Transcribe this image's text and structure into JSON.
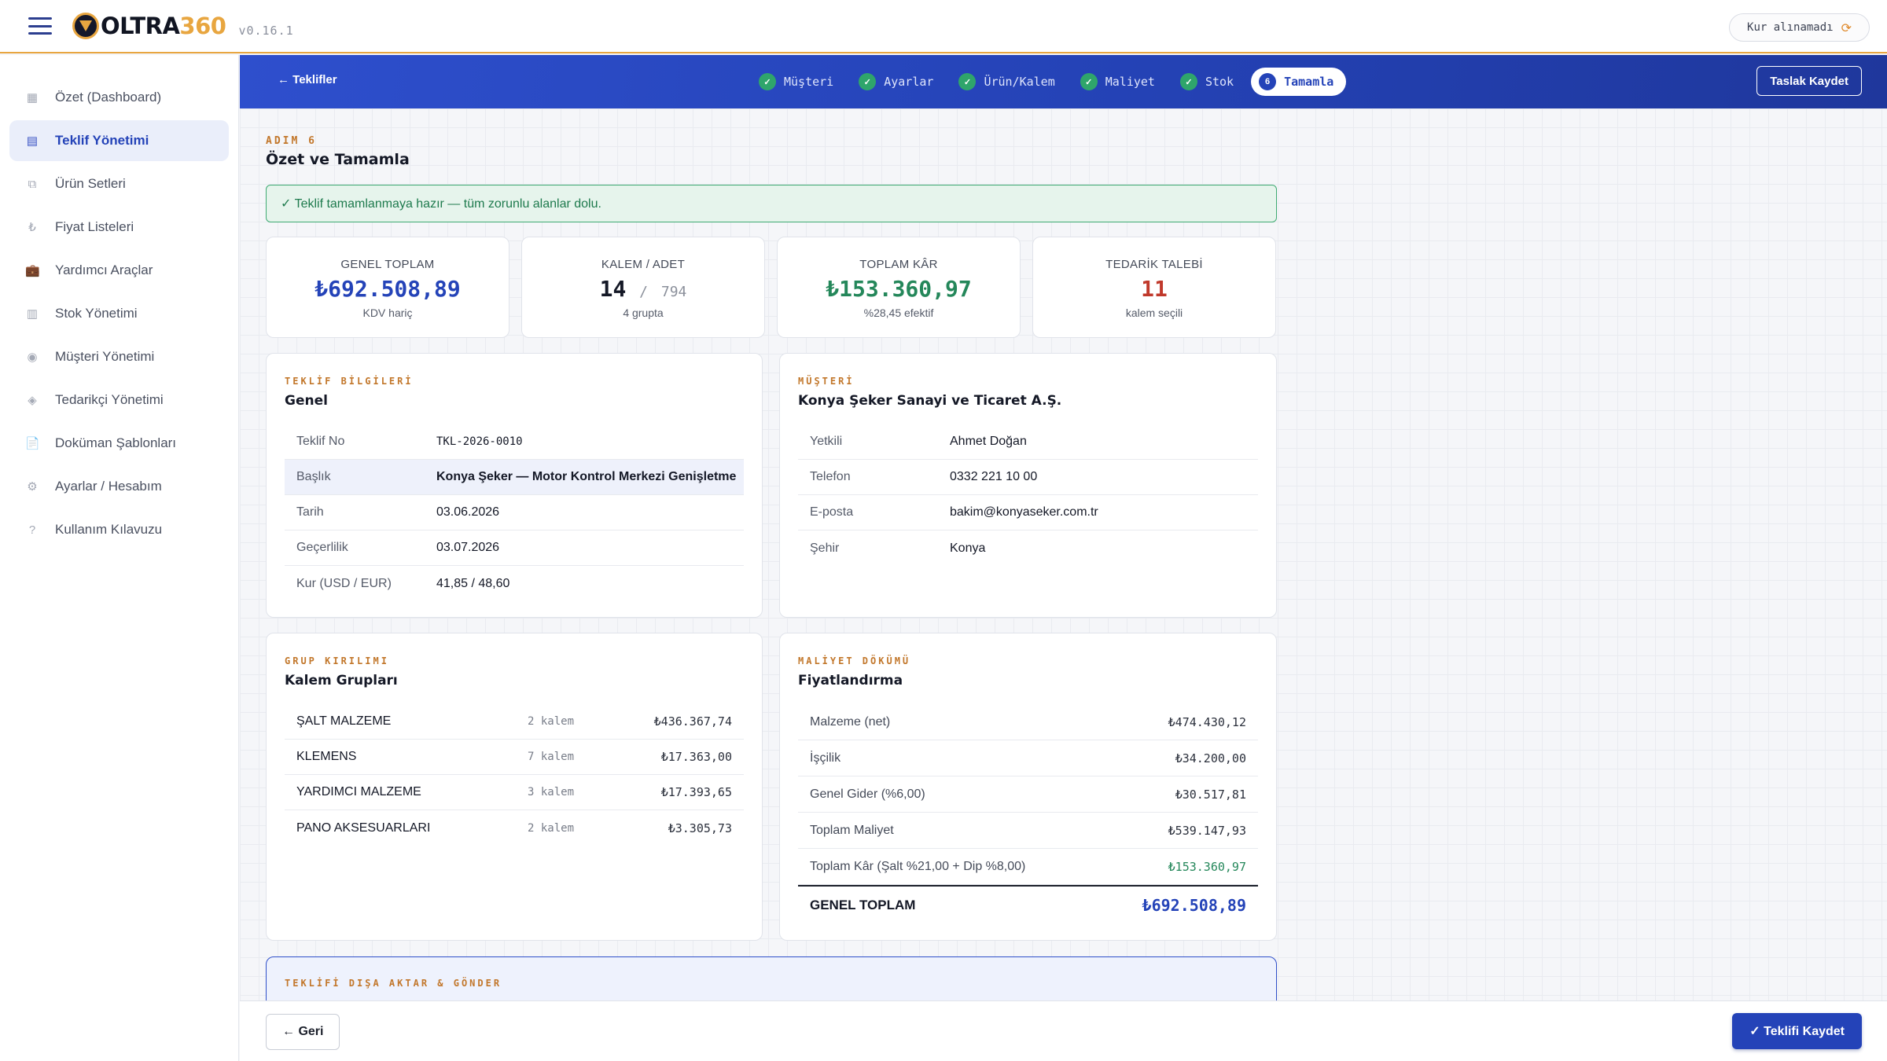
{
  "app": {
    "logo_text": "OLTRA",
    "logo_number": "360",
    "version": "v0.16.1",
    "kur_status": "Kur alınamadı",
    "colors": {
      "brand": "#2443b8",
      "accent": "#e8a640",
      "success": "#24875a",
      "danger": "#c0392b"
    }
  },
  "sidebar": {
    "items": [
      {
        "label": "Özet (Dashboard)",
        "icon": "dashboard-icon",
        "glyph": "▦"
      },
      {
        "label": "Teklif Yönetimi",
        "icon": "document-icon",
        "glyph": "▤"
      },
      {
        "label": "Ürün Setleri",
        "icon": "box-icon",
        "glyph": "⧉"
      },
      {
        "label": "Fiyat Listeleri",
        "icon": "lira-icon",
        "glyph": "₺"
      },
      {
        "label": "Yardımcı Araçlar",
        "icon": "toolbox-icon",
        "glyph": "💼"
      },
      {
        "label": "Stok Yönetimi",
        "icon": "warehouse-icon",
        "glyph": "▥"
      },
      {
        "label": "Müşteri Yönetimi",
        "icon": "customer-icon",
        "glyph": "◉"
      },
      {
        "label": "Tedarikçi Yönetimi",
        "icon": "supplier-icon",
        "glyph": "◈"
      },
      {
        "label": "Doküman Şablonları",
        "icon": "file-icon",
        "glyph": "📄"
      },
      {
        "label": "Ayarlar / Hesabım",
        "icon": "gear-icon",
        "glyph": "⚙"
      },
      {
        "label": "Kullanım Kılavuzu",
        "icon": "help-icon",
        "glyph": "?"
      }
    ],
    "active_index": 1
  },
  "stepper": {
    "back_label": "← Teklifler",
    "steps": [
      {
        "label": "Müşteri",
        "mark": "✓"
      },
      {
        "label": "Ayarlar",
        "mark": "✓"
      },
      {
        "label": "Ürün/Kalem",
        "mark": "✓"
      },
      {
        "label": "Maliyet",
        "mark": "✓"
      },
      {
        "label": "Stok",
        "mark": "✓"
      },
      {
        "label": "Tamamla",
        "mark": "6"
      }
    ],
    "current_index": 5,
    "draft_label": "Taslak Kaydet"
  },
  "page": {
    "kicker": "ADIM 6",
    "title": "Özet ve Tamamla",
    "ready_message": "✓ Teklif tamamlanmaya hazır — tüm zorunlu alanlar dolu."
  },
  "stats": {
    "total": {
      "label": "GENEL TOPLAM",
      "value": "₺692.508,89",
      "sub": "KDV hariç"
    },
    "items": {
      "label": "KALEM / ADET",
      "value": "14",
      "sep": "/",
      "secondary": "794",
      "sub": "4 grupta"
    },
    "profit": {
      "label": "TOPLAM KÂR",
      "value": "₺153.360,97",
      "sub": "%28,45 efektif"
    },
    "supply": {
      "label": "TEDARİK TALEBİ",
      "value": "11",
      "sub": "kalem seçili"
    }
  },
  "quote_info": {
    "kicker": "TEKLİF BİLGİLERİ",
    "title": "Genel",
    "rows": [
      {
        "k": "Teklif No",
        "v": "TKL-2026-0010"
      },
      {
        "k": "Başlık",
        "v": "Konya Şeker — Motor Kontrol Merkezi Genişletme"
      },
      {
        "k": "Tarih",
        "v": "03.06.2026"
      },
      {
        "k": "Geçerlilik",
        "v": "03.07.2026"
      },
      {
        "k": "Kur (USD / EUR)",
        "v": "41,85 / 48,60"
      }
    ]
  },
  "customer": {
    "kicker": "MÜŞTERİ",
    "title": "Konya Şeker Sanayi ve Ticaret A.Ş.",
    "rows": [
      {
        "k": "Yetkili",
        "v": "Ahmet Doğan"
      },
      {
        "k": "Telefon",
        "v": "0332 221 10 00"
      },
      {
        "k": "E-posta",
        "v": "bakim@konyaseker.com.tr"
      },
      {
        "k": "Şehir",
        "v": "Konya"
      }
    ]
  },
  "groups": {
    "kicker": "GRUP KIRILIMI",
    "title": "Kalem Grupları",
    "rows": [
      {
        "name": "ŞALT MALZEME",
        "count": "2 kalem",
        "total": "₺436.367,74"
      },
      {
        "name": "KLEMENS",
        "count": "7 kalem",
        "total": "₺17.363,00"
      },
      {
        "name": "YARDIMCI MALZEME",
        "count": "3 kalem",
        "total": "₺17.393,65"
      },
      {
        "name": "PANO AKSESUARLARI",
        "count": "2 kalem",
        "total": "₺3.305,73"
      }
    ]
  },
  "costs": {
    "kicker": "MALİYET DÖKÜMÜ",
    "title": "Fiyatlandırma",
    "rows": [
      {
        "label": "Malzeme (net)",
        "value": "₺474.430,12"
      },
      {
        "label": "İşçilik",
        "value": "₺34.200,00"
      },
      {
        "label": "Genel Gider (%6,00)",
        "value": "₺30.517,81"
      },
      {
        "label": "Toplam Maliyet",
        "value": "₺539.147,93"
      },
      {
        "label": "Toplam Kâr (Şalt %21,00 + Dip %8,00)",
        "value": "₺153.360,97"
      }
    ],
    "total_label": "GENEL TOPLAM",
    "total_value": "₺692.508,89"
  },
  "export": {
    "kicker": "TEKLİFİ DIŞA AKTAR & GÖNDER"
  },
  "footer": {
    "back_label": "← Geri",
    "save_label": "✓ Teklifi Kaydet"
  }
}
